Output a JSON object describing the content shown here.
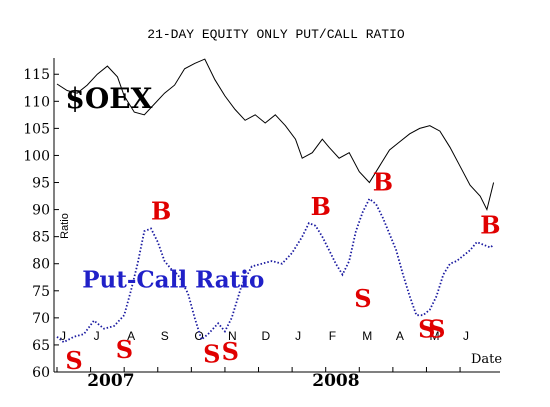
{
  "chart_data": {
    "type": "line",
    "title": "21-DAY EQUITY ONLY PUT/CALL RATIO",
    "ylabel": "Ratio",
    "xlabel": "Date",
    "ylim": [
      60,
      118
    ],
    "y_ticks": [
      60,
      65,
      70,
      75,
      80,
      85,
      90,
      95,
      100,
      105,
      110,
      115
    ],
    "x_month_labels": [
      "J",
      "J",
      "A",
      "S",
      "O",
      "N",
      "D",
      "J",
      "F",
      "M",
      "A",
      "M",
      "J"
    ],
    "x_month_positions": [
      0,
      1,
      2,
      3,
      4,
      5,
      6,
      7,
      8,
      9,
      10,
      11,
      12
    ],
    "year_labels": [
      {
        "label": "2007",
        "x": 0.9
      },
      {
        "label": "2008",
        "x": 7.6
      }
    ],
    "x_range": [
      0,
      13.1
    ],
    "series": [
      {
        "name": "$OEX",
        "style": "line",
        "color": "#000000",
        "points": [
          [
            0.0,
            113.2
          ],
          [
            0.3,
            112.0
          ],
          [
            0.6,
            111.5
          ],
          [
            0.9,
            113.0
          ],
          [
            1.2,
            115.0
          ],
          [
            1.5,
            116.5
          ],
          [
            1.8,
            114.5
          ],
          [
            2.0,
            111.0
          ],
          [
            2.3,
            108.0
          ],
          [
            2.6,
            107.5
          ],
          [
            2.9,
            109.5
          ],
          [
            3.2,
            111.5
          ],
          [
            3.5,
            113.0
          ],
          [
            3.8,
            116.0
          ],
          [
            4.1,
            117.0
          ],
          [
            4.4,
            117.8
          ],
          [
            4.7,
            114.0
          ],
          [
            5.0,
            111.0
          ],
          [
            5.3,
            108.5
          ],
          [
            5.6,
            106.5
          ],
          [
            5.9,
            107.5
          ],
          [
            6.2,
            106.0
          ],
          [
            6.5,
            107.5
          ],
          [
            6.8,
            105.5
          ],
          [
            7.1,
            103.0
          ],
          [
            7.3,
            99.5
          ],
          [
            7.6,
            100.5
          ],
          [
            7.9,
            103.0
          ],
          [
            8.1,
            101.5
          ],
          [
            8.4,
            99.5
          ],
          [
            8.7,
            100.5
          ],
          [
            9.0,
            97.0
          ],
          [
            9.3,
            95.0
          ],
          [
            9.6,
            98.0
          ],
          [
            9.9,
            101.0
          ],
          [
            10.2,
            102.5
          ],
          [
            10.5,
            104.0
          ],
          [
            10.8,
            105.0
          ],
          [
            11.1,
            105.5
          ],
          [
            11.4,
            104.5
          ],
          [
            11.7,
            101.5
          ],
          [
            12.0,
            98.0
          ],
          [
            12.3,
            94.5
          ],
          [
            12.6,
            92.5
          ],
          [
            12.8,
            90.0
          ],
          [
            13.0,
            95.0
          ]
        ]
      },
      {
        "name": "Put-Call Ratio",
        "style": "dotted",
        "color": "#1a1aa0",
        "points": [
          [
            0.0,
            66.5
          ],
          [
            0.2,
            65.5
          ],
          [
            0.5,
            66.5
          ],
          [
            0.8,
            67.0
          ],
          [
            1.1,
            69.5
          ],
          [
            1.4,
            68.0
          ],
          [
            1.7,
            68.5
          ],
          [
            2.0,
            70.5
          ],
          [
            2.2,
            75.0
          ],
          [
            2.4,
            80.0
          ],
          [
            2.6,
            86.0
          ],
          [
            2.8,
            86.5
          ],
          [
            3.0,
            84.0
          ],
          [
            3.2,
            80.5
          ],
          [
            3.4,
            79.0
          ],
          [
            3.6,
            78.0
          ],
          [
            3.9,
            74.5
          ],
          [
            4.1,
            70.0
          ],
          [
            4.3,
            66.0
          ],
          [
            4.5,
            67.0
          ],
          [
            4.8,
            69.0
          ],
          [
            5.0,
            67.5
          ],
          [
            5.2,
            70.0
          ],
          [
            5.5,
            76.0
          ],
          [
            5.8,
            79.5
          ],
          [
            6.1,
            80.0
          ],
          [
            6.4,
            80.5
          ],
          [
            6.7,
            80.0
          ],
          [
            7.0,
            82.0
          ],
          [
            7.3,
            85.0
          ],
          [
            7.5,
            87.5
          ],
          [
            7.7,
            87.0
          ],
          [
            7.9,
            85.0
          ],
          [
            8.1,
            82.5
          ],
          [
            8.3,
            80.0
          ],
          [
            8.5,
            78.0
          ],
          [
            8.7,
            80.5
          ],
          [
            8.9,
            86.0
          ],
          [
            9.1,
            89.5
          ],
          [
            9.3,
            92.0
          ],
          [
            9.5,
            91.0
          ],
          [
            9.7,
            88.5
          ],
          [
            9.9,
            85.5
          ],
          [
            10.1,
            82.5
          ],
          [
            10.3,
            78.0
          ],
          [
            10.5,
            74.0
          ],
          [
            10.7,
            70.5
          ],
          [
            10.9,
            70.5
          ],
          [
            11.1,
            71.5
          ],
          [
            11.3,
            74.0
          ],
          [
            11.5,
            78.0
          ],
          [
            11.7,
            80.0
          ],
          [
            11.9,
            80.5
          ],
          [
            12.1,
            81.5
          ],
          [
            12.3,
            82.5
          ],
          [
            12.5,
            84.0
          ],
          [
            12.7,
            83.5
          ],
          [
            12.9,
            83.0
          ],
          [
            13.0,
            83.5
          ]
        ]
      }
    ],
    "annotations": [
      {
        "text": "$OEX",
        "kind": "series-label",
        "x": 0.25,
        "y": 108.8,
        "color": "#000000"
      },
      {
        "text": "Put-Call Ratio",
        "kind": "series-label",
        "x": 0.75,
        "y": 75.6,
        "color": "#2020c8"
      },
      {
        "text": "B",
        "kind": "buy",
        "x": 2.8,
        "y": 88.2,
        "color": "#e00000"
      },
      {
        "text": "B",
        "kind": "buy",
        "x": 7.55,
        "y": 89.0,
        "color": "#e00000"
      },
      {
        "text": "B",
        "kind": "buy",
        "x": 9.4,
        "y": 93.5,
        "color": "#e00000"
      },
      {
        "text": "B",
        "kind": "buy",
        "x": 12.6,
        "y": 85.6,
        "color": "#e00000"
      },
      {
        "text": "S",
        "kind": "sell",
        "x": 0.25,
        "y": 60.6,
        "color": "#e00000"
      },
      {
        "text": "S",
        "kind": "sell",
        "x": 1.75,
        "y": 62.6,
        "color": "#e00000"
      },
      {
        "text": "S",
        "kind": "sell",
        "x": 4.35,
        "y": 61.8,
        "color": "#e00000"
      },
      {
        "text": "S",
        "kind": "sell",
        "x": 4.9,
        "y": 62.2,
        "color": "#e00000"
      },
      {
        "text": "S",
        "kind": "sell",
        "x": 8.85,
        "y": 72.0,
        "color": "#e00000"
      },
      {
        "text": "S",
        "kind": "sell",
        "x": 10.75,
        "y": 66.4,
        "color": "#e00000"
      },
      {
        "text": "S",
        "kind": "sell",
        "x": 11.05,
        "y": 66.4,
        "color": "#e00000"
      }
    ]
  }
}
